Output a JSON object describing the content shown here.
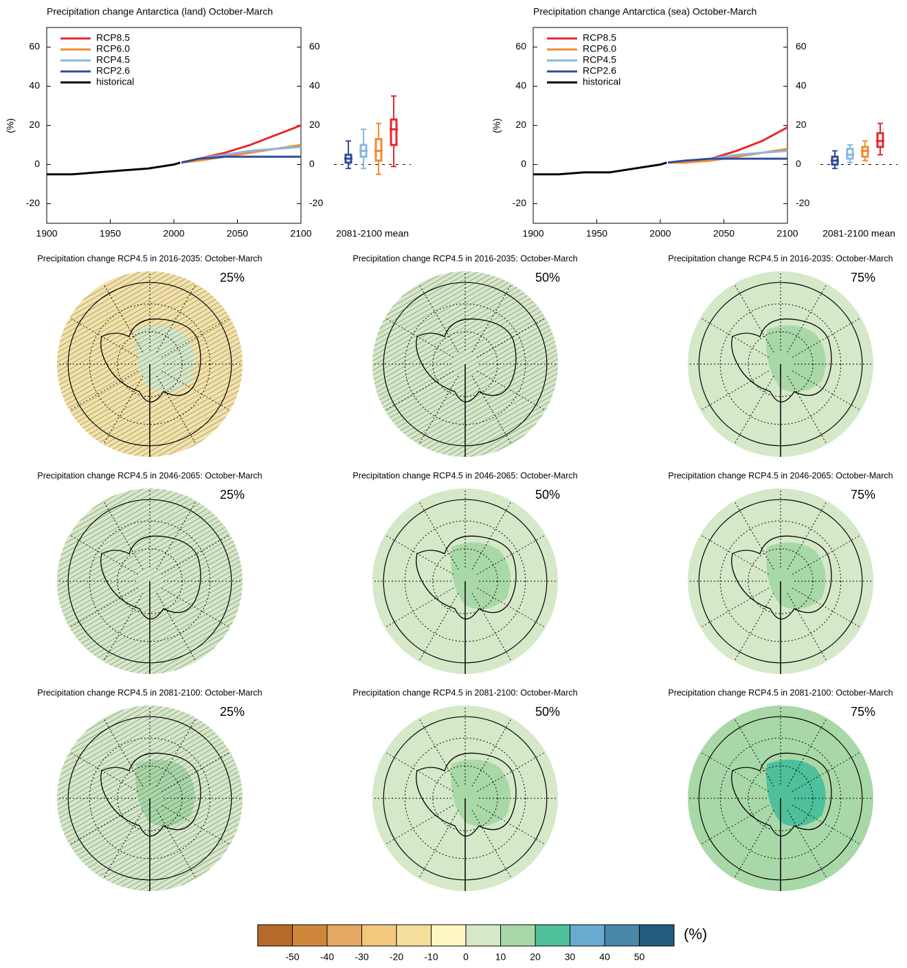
{
  "chart_data": [
    {
      "type": "line",
      "title": "Precipitation change Antarctica (land) October-March",
      "y_label": "(%)",
      "box_label": "2081-2100 mean",
      "xlim": [
        1900,
        2100
      ],
      "xticks": [
        1900,
        1950,
        2000,
        2050,
        2100
      ],
      "ylim": [
        -30,
        70
      ],
      "yticks": [
        -20,
        0,
        20,
        40,
        60
      ],
      "series": [
        {
          "name": "RCP8.5",
          "color": "#e8262b",
          "x": [
            2006,
            2020,
            2040,
            2060,
            2080,
            2100
          ],
          "values": [
            1,
            3,
            6,
            10,
            15,
            20
          ],
          "box": [
            -1,
            10,
            18,
            23,
            35
          ]
        },
        {
          "name": "RCP6.0",
          "color": "#f28b30",
          "x": [
            2006,
            2020,
            2040,
            2060,
            2080,
            2100
          ],
          "values": [
            1,
            2,
            4,
            6,
            8,
            10
          ],
          "box": [
            -5,
            2,
            7,
            13,
            21
          ]
        },
        {
          "name": "RCP4.5",
          "color": "#86b8e2",
          "x": [
            2006,
            2020,
            2040,
            2060,
            2080,
            2100
          ],
          "values": [
            1,
            3,
            5,
            7,
            8,
            9
          ],
          "box": [
            -2,
            4,
            7,
            10,
            18
          ]
        },
        {
          "name": "RCP2.6",
          "color": "#2f4b9c",
          "x": [
            2006,
            2020,
            2040,
            2060,
            2080,
            2100
          ],
          "values": [
            1,
            3,
            4,
            4,
            4,
            4
          ],
          "box": [
            -2,
            1,
            3,
            5,
            12
          ]
        },
        {
          "name": "historical",
          "color": "#000000",
          "x": [
            1900,
            1920,
            1940,
            1960,
            1980,
            2000,
            2005
          ],
          "values": [
            -5,
            -5,
            -4,
            -3,
            -2,
            0,
            1
          ]
        }
      ]
    },
    {
      "type": "line",
      "title": "Precipitation change Antarctica (sea) October-March",
      "y_label": "(%)",
      "box_label": "2081-2100 mean",
      "xlim": [
        1900,
        2100
      ],
      "xticks": [
        1900,
        1950,
        2000,
        2050,
        2100
      ],
      "ylim": [
        -30,
        70
      ],
      "yticks": [
        -20,
        0,
        20,
        40,
        60
      ],
      "series": [
        {
          "name": "RCP8.5",
          "color": "#e8262b",
          "x": [
            2006,
            2020,
            2040,
            2060,
            2080,
            2100
          ],
          "values": [
            1,
            1,
            3,
            7,
            12,
            19
          ],
          "box": [
            5,
            9,
            12,
            16,
            21
          ]
        },
        {
          "name": "RCP6.0",
          "color": "#f28b30",
          "x": [
            2006,
            2020,
            2040,
            2060,
            2080,
            2100
          ],
          "values": [
            1,
            1,
            2,
            4,
            6,
            8
          ],
          "box": [
            2,
            4,
            7,
            9,
            12
          ]
        },
        {
          "name": "RCP4.5",
          "color": "#86b8e2",
          "x": [
            2006,
            2020,
            2040,
            2060,
            2080,
            2100
          ],
          "values": [
            1,
            2,
            3,
            5,
            6,
            7
          ],
          "box": [
            1,
            3,
            5,
            8,
            10
          ]
        },
        {
          "name": "RCP2.6",
          "color": "#2f4b9c",
          "x": [
            2006,
            2020,
            2040,
            2060,
            2080,
            2100
          ],
          "values": [
            1,
            2,
            3,
            3,
            3,
            3
          ],
          "box": [
            -2,
            0,
            2,
            4,
            7
          ]
        },
        {
          "name": "historical",
          "color": "#000000",
          "x": [
            1900,
            1920,
            1940,
            1960,
            1980,
            2000,
            2005
          ],
          "values": [
            -5,
            -5,
            -4,
            -4,
            -2,
            0,
            1
          ]
        }
      ]
    }
  ],
  "maps": [
    {
      "title": "Precipitation change RCP4.5 in 2016-2035: October-March",
      "percentile": "25%",
      "color": "#f3e2a8",
      "inner_color": "#d5e8c8",
      "hatched": true
    },
    {
      "title": "Precipitation change RCP4.5 in 2016-2035: October-March",
      "percentile": "50%",
      "color": "#d5e8c8",
      "inner_color": "#d5e8c8",
      "hatched": true
    },
    {
      "title": "Precipitation change RCP4.5 in 2016-2035: October-March",
      "percentile": "75%",
      "color": "#d5e8c8",
      "inner_color": "#a9d8a8",
      "hatched": false
    },
    {
      "title": "Precipitation change RCP4.5 in 2046-2065: October-March",
      "percentile": "25%",
      "color": "#d5e8c8",
      "inner_color": "#d5e8c8",
      "hatched": true
    },
    {
      "title": "Precipitation change RCP4.5 in 2046-2065: October-March",
      "percentile": "50%",
      "color": "#d5e8c8",
      "inner_color": "#a9d8a8",
      "hatched": false
    },
    {
      "title": "Precipitation change RCP4.5 in 2046-2065: October-March",
      "percentile": "75%",
      "color": "#d5e8c8",
      "inner_color": "#a9d8a8",
      "hatched": false
    },
    {
      "title": "Precipitation change RCP4.5 in 2081-2100: October-March",
      "percentile": "25%",
      "color": "#d5e8c8",
      "inner_color": "#a9d8a8",
      "hatched": true
    },
    {
      "title": "Precipitation change RCP4.5 in 2081-2100: October-March",
      "percentile": "50%",
      "color": "#d5e8c8",
      "inner_color": "#a9d8a8",
      "hatched": false
    },
    {
      "title": "Precipitation change RCP4.5 in 2081-2100: October-March",
      "percentile": "75%",
      "color": "#a9d8a8",
      "inner_color": "#4fbf9c",
      "hatched": false
    }
  ],
  "colorbar": {
    "label": "(%)",
    "colors": [
      "#b5692a",
      "#cf873c",
      "#e3a863",
      "#f2c87f",
      "#f3de9c",
      "#fef6c4",
      "#d5e8c8",
      "#a9d8a8",
      "#4fbf9c",
      "#6aaad0",
      "#4a86a8",
      "#235c7c"
    ],
    "ticks": [
      -50,
      -40,
      -30,
      -20,
      -10,
      0,
      10,
      20,
      30,
      40,
      50
    ]
  }
}
